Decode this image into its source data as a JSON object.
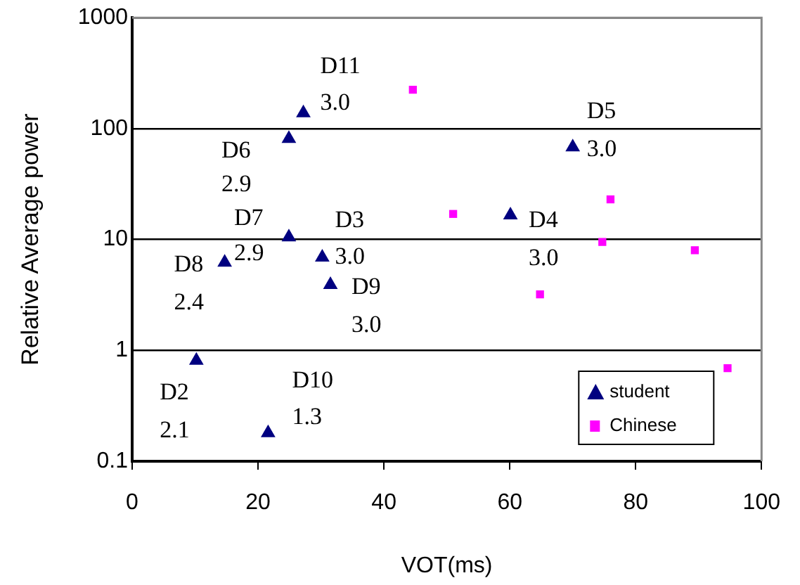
{
  "chart_data": {
    "type": "scatter",
    "xlabel": "VOT(ms)",
    "ylabel": "Relative Average power",
    "log": "y",
    "xlim": [
      0,
      100
    ],
    "xticks": [
      0,
      20,
      40,
      60,
      80,
      100
    ],
    "ylim": [
      0.1,
      1000
    ],
    "yticks": [
      0.1,
      1,
      10,
      100,
      1000
    ],
    "grid": "y",
    "legend": "bottom right",
    "series": [
      {
        "name": "student",
        "color": "#000080",
        "marker": "triangle",
        "x": [
          27.2,
          24.9,
          24.9,
          30.2,
          14.7,
          31.5,
          10.2,
          21.6,
          70.0,
          60.1
        ],
        "values": [
          138,
          81,
          10.5,
          6.9,
          6.2,
          3.9,
          0.81,
          0.18,
          68,
          16.6
        ]
      },
      {
        "name": "Chinese",
        "color": "#ff00ff",
        "marker": "square",
        "x": [
          44.6,
          51.0,
          76.0,
          74.7,
          89.4,
          64.8,
          94.6
        ],
        "values": [
          224,
          17,
          23,
          9.5,
          8.0,
          3.2,
          0.69
        ]
      }
    ],
    "annotations": [
      {
        "text": "D11\n3.0",
        "x": 27.2,
        "y": 138
      },
      {
        "text": "D6\n2.9",
        "x": 24.9,
        "y": 81
      },
      {
        "text": "D7\n2.9",
        "x": 24.9,
        "y": 10.5
      },
      {
        "text": "D3\n3.0",
        "x": 30.2,
        "y": 6.9
      },
      {
        "text": "D8\n2.4",
        "x": 14.7,
        "y": 6.2
      },
      {
        "text": "D9\n3.0",
        "x": 31.5,
        "y": 3.9
      },
      {
        "text": "D2\n2.1",
        "x": 10.2,
        "y": 0.81
      },
      {
        "text": "D10\n1.3",
        "x": 21.6,
        "y": 0.18
      },
      {
        "text": "D5\n3.0",
        "x": 70.0,
        "y": 68
      },
      {
        "text": "D4\n3.0",
        "x": 60.1,
        "y": 16.6
      }
    ]
  }
}
